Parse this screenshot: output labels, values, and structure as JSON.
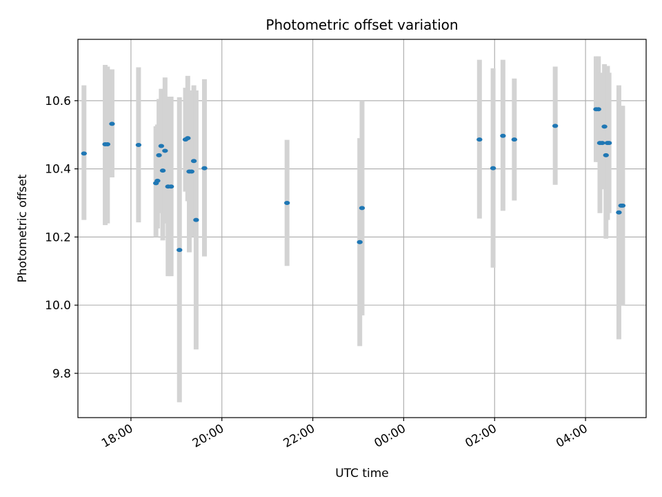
{
  "chart_data": {
    "type": "scatter",
    "title": "Photometric offset variation",
    "xlabel": "UTC time",
    "ylabel": "Photometric offset",
    "grid": true,
    "x_axis": {
      "kind": "time",
      "range": [
        "16:50",
        "05:20"
      ],
      "ticks": [
        "18:00",
        "20:00",
        "22:00",
        "00:00",
        "02:00",
        "04:00"
      ]
    },
    "ylim": [
      9.67,
      10.78
    ],
    "y_ticks": [
      "9.8",
      "10.0",
      "10.2",
      "10.4",
      "10.6"
    ],
    "colors": {
      "marker": "#1f77b4",
      "error_bar": "#d3d3d3",
      "grid": "#b0b0b0"
    },
    "points": [
      {
        "x": "16:58",
        "y": 10.445,
        "ylow": 10.25,
        "yhigh": 10.645
      },
      {
        "x": "17:26",
        "y": 10.472,
        "ylow": 10.235,
        "yhigh": 10.705
      },
      {
        "x": "17:29",
        "y": 10.472,
        "ylow": 10.24,
        "yhigh": 10.7
      },
      {
        "x": "17:35",
        "y": 10.532,
        "ylow": 10.375,
        "yhigh": 10.692
      },
      {
        "x": "18:10",
        "y": 10.47,
        "ylow": 10.243,
        "yhigh": 10.698
      },
      {
        "x": "18:33",
        "y": 10.358,
        "ylow": 10.2,
        "yhigh": 10.525
      },
      {
        "x": "18:35",
        "y": 10.365,
        "ylow": 10.225,
        "yhigh": 10.53
      },
      {
        "x": "18:37",
        "y": 10.44,
        "ylow": 10.27,
        "yhigh": 10.605
      },
      {
        "x": "18:40",
        "y": 10.467,
        "ylow": 10.3,
        "yhigh": 10.635
      },
      {
        "x": "18:42",
        "y": 10.395,
        "ylow": 10.19,
        "yhigh": 10.6
      },
      {
        "x": "18:45",
        "y": 10.453,
        "ylow": 10.24,
        "yhigh": 10.668
      },
      {
        "x": "18:49",
        "y": 10.348,
        "ylow": 10.085,
        "yhigh": 10.612
      },
      {
        "x": "18:53",
        "y": 10.348,
        "ylow": 10.085,
        "yhigh": 10.612
      },
      {
        "x": "19:04",
        "y": 10.162,
        "ylow": 9.715,
        "yhigh": 10.61
      },
      {
        "x": "19:12",
        "y": 10.486,
        "ylow": 10.333,
        "yhigh": 10.638
      },
      {
        "x": "19:15",
        "y": 10.49,
        "ylow": 10.305,
        "yhigh": 10.673
      },
      {
        "x": "19:17",
        "y": 10.392,
        "ylow": 10.155,
        "yhigh": 10.63
      },
      {
        "x": "19:20",
        "y": 10.392,
        "ylow": 10.2,
        "yhigh": 10.61
      },
      {
        "x": "19:23",
        "y": 10.423,
        "ylow": 10.2,
        "yhigh": 10.645
      },
      {
        "x": "19:26",
        "y": 10.25,
        "ylow": 9.87,
        "yhigh": 10.63
      },
      {
        "x": "19:37",
        "y": 10.402,
        "ylow": 10.143,
        "yhigh": 10.663
      },
      {
        "x": "21:26",
        "y": 10.3,
        "ylow": 10.115,
        "yhigh": 10.485
      },
      {
        "x": "23:02",
        "y": 10.185,
        "ylow": 9.88,
        "yhigh": 10.49
      },
      {
        "x": "23:05",
        "y": 10.285,
        "ylow": 9.97,
        "yhigh": 10.6
      },
      {
        "x": "01:40",
        "y": 10.486,
        "ylow": 10.254,
        "yhigh": 10.72
      },
      {
        "x": "01:58",
        "y": 10.402,
        "ylow": 10.11,
        "yhigh": 10.695
      },
      {
        "x": "02:11",
        "y": 10.497,
        "ylow": 10.277,
        "yhigh": 10.72
      },
      {
        "x": "02:26",
        "y": 10.486,
        "ylow": 10.307,
        "yhigh": 10.665
      },
      {
        "x": "03:20",
        "y": 10.526,
        "ylow": 10.353,
        "yhigh": 10.7
      },
      {
        "x": "04:14",
        "y": 10.575,
        "ylow": 10.42,
        "yhigh": 10.73
      },
      {
        "x": "04:17",
        "y": 10.575,
        "ylow": 10.42,
        "yhigh": 10.73
      },
      {
        "x": "04:19",
        "y": 10.476,
        "ylow": 10.27,
        "yhigh": 10.682
      },
      {
        "x": "04:22",
        "y": 10.476,
        "ylow": 10.345,
        "yhigh": 10.607
      },
      {
        "x": "04:25",
        "y": 10.524,
        "ylow": 10.34,
        "yhigh": 10.707
      },
      {
        "x": "04:27",
        "y": 10.44,
        "ylow": 10.195,
        "yhigh": 10.685
      },
      {
        "x": "04:29",
        "y": 10.476,
        "ylow": 10.25,
        "yhigh": 10.702
      },
      {
        "x": "04:31",
        "y": 10.476,
        "ylow": 10.27,
        "yhigh": 10.682
      },
      {
        "x": "04:44",
        "y": 10.272,
        "ylow": 9.9,
        "yhigh": 10.645
      },
      {
        "x": "04:47",
        "y": 10.292,
        "ylow": 10.0,
        "yhigh": 10.585
      },
      {
        "x": "04:49",
        "y": 10.292,
        "ylow": 10.0,
        "yhigh": 10.585
      }
    ]
  }
}
